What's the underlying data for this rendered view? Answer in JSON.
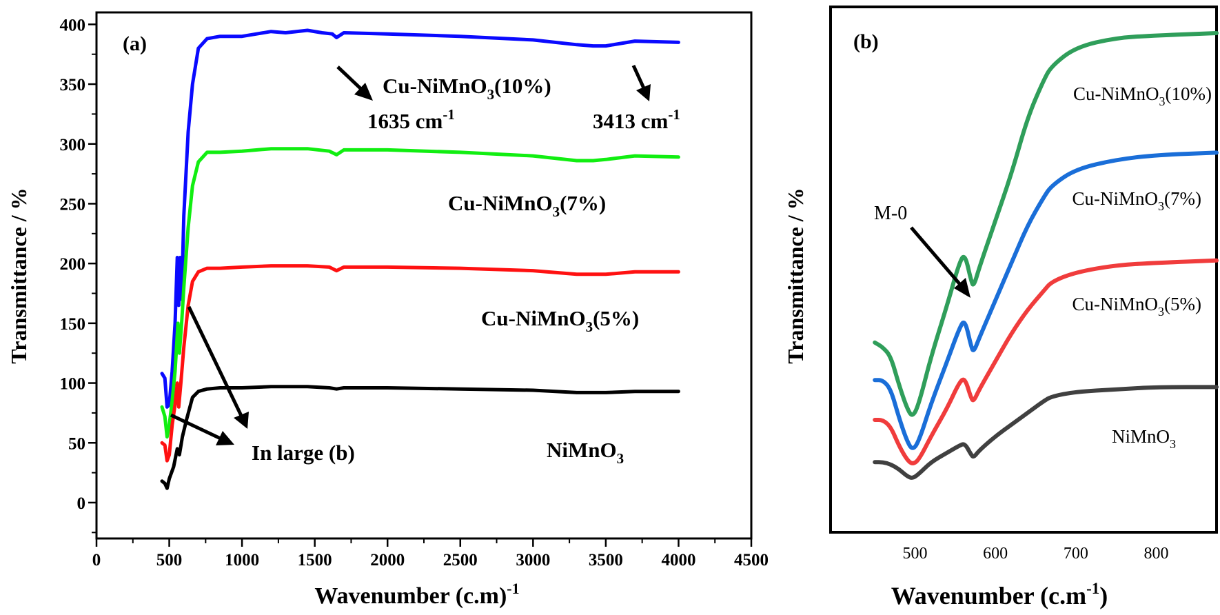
{
  "chart_data": [
    {
      "type": "line",
      "panel_label": "(a)",
      "title": "",
      "xlabel": "Wavenumber (c.m)",
      "xlabel_sup": "-1",
      "ylabel": "Transmittance / %",
      "xlim": [
        0,
        4500
      ],
      "ylim": [
        -30,
        410
      ],
      "xticks": [
        0,
        500,
        1000,
        1500,
        2000,
        2500,
        3000,
        3500,
        4000,
        4500
      ],
      "yticks": [
        0,
        50,
        100,
        150,
        200,
        250,
        300,
        350,
        400
      ],
      "series": [
        {
          "name": "Cu-NiMnO3(10%)",
          "label_main": "Cu-NiMnO",
          "label_sub": "3",
          "label_tail": "(10%)",
          "color": "#0a0aff",
          "points": [
            [
              450,
              108
            ],
            [
              470,
              104
            ],
            [
              485,
              80
            ],
            [
              500,
              82
            ],
            [
              520,
              110
            ],
            [
              540,
              150
            ],
            [
              555,
              205
            ],
            [
              565,
              165
            ],
            [
              575,
              205
            ],
            [
              585,
              170
            ],
            [
              600,
              240
            ],
            [
              630,
              310
            ],
            [
              660,
              350
            ],
            [
              700,
              380
            ],
            [
              760,
              388
            ],
            [
              850,
              390
            ],
            [
              1000,
              390
            ],
            [
              1100,
              392
            ],
            [
              1200,
              394
            ],
            [
              1300,
              393
            ],
            [
              1450,
              395
            ],
            [
              1550,
              393
            ],
            [
              1620,
              392
            ],
            [
              1650,
              389
            ],
            [
              1700,
              393
            ],
            [
              2000,
              392
            ],
            [
              2500,
              390
            ],
            [
              3000,
              387
            ],
            [
              3300,
              383
            ],
            [
              3413,
              382
            ],
            [
              3500,
              382
            ],
            [
              3700,
              386
            ],
            [
              4000,
              385
            ]
          ]
        },
        {
          "name": "Cu-NiMnO3(7%)",
          "label_main": "Cu-NiMnO",
          "label_sub": "3",
          "label_tail": "(7%)",
          "color": "#11ee11",
          "points": [
            [
              450,
              80
            ],
            [
              470,
              72
            ],
            [
              485,
              55
            ],
            [
              500,
              65
            ],
            [
              520,
              85
            ],
            [
              540,
              110
            ],
            [
              560,
              150
            ],
            [
              570,
              125
            ],
            [
              585,
              150
            ],
            [
              600,
              180
            ],
            [
              630,
              230
            ],
            [
              660,
              265
            ],
            [
              700,
              285
            ],
            [
              760,
              293
            ],
            [
              850,
              293
            ],
            [
              1000,
              294
            ],
            [
              1200,
              296
            ],
            [
              1450,
              296
            ],
            [
              1600,
              294
            ],
            [
              1650,
              291
            ],
            [
              1700,
              295
            ],
            [
              2000,
              295
            ],
            [
              2500,
              293
            ],
            [
              3000,
              290
            ],
            [
              3300,
              286
            ],
            [
              3413,
              286
            ],
            [
              3500,
              287
            ],
            [
              3700,
              290
            ],
            [
              4000,
              289
            ]
          ]
        },
        {
          "name": "Cu-NiMnO3(5%)",
          "label_main": "Cu-NiMnO",
          "label_sub": "3",
          "label_tail": "(5%)",
          "color": "#ff1111",
          "points": [
            [
              450,
              50
            ],
            [
              470,
              48
            ],
            [
              485,
              35
            ],
            [
              500,
              40
            ],
            [
              520,
              65
            ],
            [
              540,
              82
            ],
            [
              555,
              100
            ],
            [
              565,
              80
            ],
            [
              580,
              100
            ],
            [
              600,
              130
            ],
            [
              630,
              165
            ],
            [
              660,
              185
            ],
            [
              700,
              193
            ],
            [
              760,
              196
            ],
            [
              850,
              196
            ],
            [
              1000,
              197
            ],
            [
              1200,
              198
            ],
            [
              1450,
              198
            ],
            [
              1600,
              197
            ],
            [
              1650,
              194
            ],
            [
              1700,
              197
            ],
            [
              2000,
              197
            ],
            [
              2500,
              196
            ],
            [
              3000,
              194
            ],
            [
              3300,
              191
            ],
            [
              3413,
              191
            ],
            [
              3500,
              191
            ],
            [
              3700,
              193
            ],
            [
              4000,
              193
            ]
          ]
        },
        {
          "name": "NiMnO3",
          "label_main": "NiMnO",
          "label_sub": "3",
          "label_tail": "",
          "color": "#000000",
          "points": [
            [
              450,
              18
            ],
            [
              470,
              16
            ],
            [
              485,
              12
            ],
            [
              500,
              20
            ],
            [
              530,
              30
            ],
            [
              555,
              45
            ],
            [
              570,
              40
            ],
            [
              590,
              55
            ],
            [
              620,
              70
            ],
            [
              660,
              88
            ],
            [
              700,
              93
            ],
            [
              760,
              95
            ],
            [
              850,
              96
            ],
            [
              1000,
              96
            ],
            [
              1200,
              97
            ],
            [
              1450,
              97
            ],
            [
              1600,
              96
            ],
            [
              1650,
              95
            ],
            [
              1700,
              96
            ],
            [
              2000,
              96
            ],
            [
              2500,
              95
            ],
            [
              3000,
              94
            ],
            [
              3300,
              92
            ],
            [
              3413,
              92
            ],
            [
              3500,
              92
            ],
            [
              3700,
              93
            ],
            [
              4000,
              93
            ]
          ]
        }
      ],
      "annotations": [
        {
          "text": "1635 cm",
          "sup": "-1"
        },
        {
          "text": "3413 cm",
          "sup": "-1"
        },
        {
          "text": "In large (b)",
          "sup": ""
        }
      ]
    },
    {
      "type": "line",
      "panel_label": "(b)",
      "title": "",
      "xlabel": "Wavenumber (c.m",
      "xlabel_sup": "-1",
      "xlabel_tail": ")",
      "ylabel": "Transmittance / %",
      "xlim": [
        395,
        875
      ],
      "ylim": [
        0,
        100
      ],
      "xticks": [
        500,
        600,
        700,
        800
      ],
      "yticks": [],
      "series": [
        {
          "name": "Cu-NiMnO3(10%)",
          "label_main": "Cu-NiMnO",
          "label_sub": "3",
          "label_tail": "(10%)",
          "color": "#2f9e5a",
          "points": [
            [
              450,
              34
            ],
            [
              460,
              33
            ],
            [
              470,
              31
            ],
            [
              480,
              25
            ],
            [
              490,
              20
            ],
            [
              497,
              18
            ],
            [
              505,
              21
            ],
            [
              520,
              31
            ],
            [
              540,
              42
            ],
            [
              555,
              51
            ],
            [
              562,
              53
            ],
            [
              570,
              47
            ],
            [
              573,
              46
            ],
            [
              580,
              50
            ],
            [
              600,
              60
            ],
            [
              620,
              70
            ],
            [
              640,
              82
            ],
            [
              660,
              90
            ],
            [
              670,
              93
            ],
            [
              700,
              97
            ],
            [
              750,
              99
            ],
            [
              800,
              99.5
            ],
            [
              875,
              100
            ]
          ]
        },
        {
          "name": "Cu-NiMnO3(7%)",
          "label_main": "Cu-NiMnO",
          "label_sub": "3",
          "label_tail": "(7%)",
          "color": "#1a6ed8",
          "points": [
            [
              450,
              26
            ],
            [
              460,
              26
            ],
            [
              470,
              24
            ],
            [
              480,
              18
            ],
            [
              490,
              13
            ],
            [
              497,
              11
            ],
            [
              505,
              13
            ],
            [
              520,
              21
            ],
            [
              540,
              30
            ],
            [
              555,
              37
            ],
            [
              562,
              39
            ],
            [
              570,
              33
            ],
            [
              573,
              32
            ],
            [
              580,
              35
            ],
            [
              600,
              43
            ],
            [
              620,
              51
            ],
            [
              640,
              59
            ],
            [
              660,
              65
            ],
            [
              670,
              67.5
            ],
            [
              700,
              71
            ],
            [
              750,
              73
            ],
            [
              800,
              74
            ],
            [
              875,
              74.5
            ]
          ]
        },
        {
          "name": "Cu-NiMnO3(5%)",
          "label_main": "Cu-NiMnO",
          "label_sub": "3",
          "label_tail": "(5%)",
          "color": "#f03c3c",
          "points": [
            [
              450,
              17.5
            ],
            [
              460,
              17.5
            ],
            [
              470,
              16
            ],
            [
              480,
              12
            ],
            [
              490,
              9
            ],
            [
              497,
              8
            ],
            [
              505,
              9
            ],
            [
              520,
              14
            ],
            [
              540,
              20
            ],
            [
              555,
              25.5
            ],
            [
              562,
              26.5
            ],
            [
              570,
              22
            ],
            [
              573,
              21.5
            ],
            [
              580,
              24
            ],
            [
              600,
              30
            ],
            [
              620,
              36
            ],
            [
              640,
              41
            ],
            [
              660,
              45
            ],
            [
              670,
              47
            ],
            [
              700,
              49
            ],
            [
              750,
              50.5
            ],
            [
              800,
              51
            ],
            [
              875,
              51.5
            ]
          ]
        },
        {
          "name": "NiMnO3",
          "label_main": "NiMnO",
          "label_sub": "3",
          "label_tail": "",
          "color": "#404040",
          "points": [
            [
              450,
              8.5
            ],
            [
              460,
              8.5
            ],
            [
              470,
              8
            ],
            [
              480,
              7
            ],
            [
              490,
              5.5
            ],
            [
              497,
              5
            ],
            [
              505,
              6
            ],
            [
              520,
              8.5
            ],
            [
              540,
              10.5
            ],
            [
              555,
              12
            ],
            [
              562,
              12.5
            ],
            [
              570,
              10
            ],
            [
              573,
              9.5
            ],
            [
              580,
              11
            ],
            [
              600,
              14
            ],
            [
              620,
              16.5
            ],
            [
              640,
              19
            ],
            [
              660,
              21.5
            ],
            [
              670,
              22.5
            ],
            [
              700,
              23.5
            ],
            [
              750,
              24
            ],
            [
              800,
              24.5
            ],
            [
              875,
              24.5
            ]
          ]
        }
      ],
      "annotations": [
        {
          "text": "M-0",
          "sup": ""
        }
      ]
    }
  ]
}
